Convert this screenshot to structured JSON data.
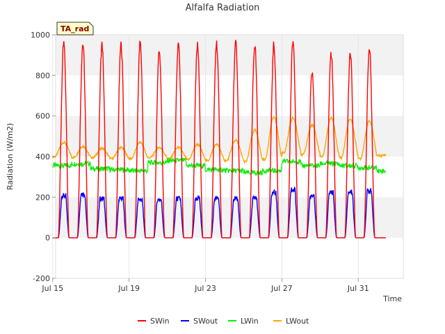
{
  "chart_data": {
    "type": "line",
    "title": "Alfalfa Radiation",
    "xlabel": "Time",
    "ylabel": "Radiation (W/m2)",
    "ylim": [
      -200,
      1000
    ],
    "yticks": [
      -200,
      0,
      200,
      400,
      600,
      800,
      1000
    ],
    "xlim": [
      "2024-07-15",
      "2024-08-02"
    ],
    "xticks": [
      {
        "date": "2024-07-15",
        "label": "Jul 15"
      },
      {
        "date": "2024-07-19",
        "label": "Jul 19"
      },
      {
        "date": "2024-07-23",
        "label": "Jul 23"
      },
      {
        "date": "2024-07-27",
        "label": "Jul 27"
      },
      {
        "date": "2024-07-31",
        "label": "Jul 31"
      }
    ],
    "badge": "TA_rad",
    "grid": "horizontal bands",
    "legend_position": "bottom",
    "colors": {
      "SWin": "#ff0000",
      "SWout": "#0000ff",
      "LWin": "#00ee00",
      "LWout": "#ffa500"
    },
    "days": [
      "2024-07-15",
      "2024-07-16",
      "2024-07-17",
      "2024-07-18",
      "2024-07-19",
      "2024-07-20",
      "2024-07-21",
      "2024-07-22",
      "2024-07-23",
      "2024-07-24",
      "2024-07-25",
      "2024-07-26",
      "2024-07-27",
      "2024-07-28",
      "2024-07-29",
      "2024-07-30",
      "2024-07-31",
      "2024-08-01"
    ],
    "series": [
      {
        "name": "SWin",
        "daily_peak": [
          980,
          980,
          975,
          975,
          985,
          950,
          975,
          970,
          985,
          985,
          980,
          975,
          995,
          840,
          930,
          935,
          955,
          0
        ],
        "night": 0
      },
      {
        "name": "SWout",
        "daily_peak": [
          220,
          230,
          205,
          205,
          200,
          200,
          205,
          205,
          205,
          205,
          205,
          235,
          250,
          215,
          235,
          240,
          245,
          0
        ],
        "night": 0
      },
      {
        "name": "LWin",
        "daily_mean": [
          355,
          365,
          340,
          335,
          330,
          370,
          380,
          355,
          335,
          330,
          320,
          330,
          375,
          355,
          365,
          355,
          345,
          330
        ]
      },
      {
        "name": "LWout",
        "daily_min": [
          400,
          395,
          395,
          390,
          390,
          395,
          390,
          385,
          380,
          380,
          375,
          385,
          420,
          410,
          400,
          395,
          390,
          405
        ],
        "daily_peak": [
          470,
          450,
          440,
          445,
          470,
          445,
          445,
          460,
          460,
          480,
          530,
          595,
          590,
          555,
          590,
          585,
          575,
          410
        ]
      }
    ]
  }
}
